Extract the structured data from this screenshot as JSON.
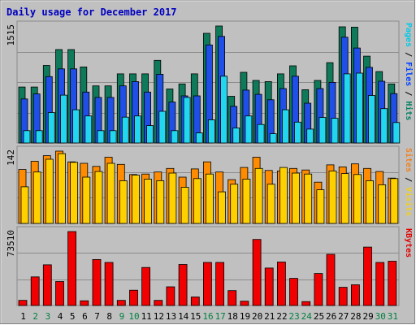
{
  "chart_data": {
    "type": "bar",
    "title": "Daily usage for December 2017",
    "days": [
      "1",
      "2",
      "3",
      "4",
      "5",
      "6",
      "7",
      "8",
      "9",
      "10",
      "11",
      "12",
      "13",
      "14",
      "15",
      "16",
      "17",
      "18",
      "19",
      "20",
      "21",
      "22",
      "23",
      "24",
      "25",
      "26",
      "27",
      "28",
      "29",
      "30",
      "31"
    ],
    "weekend_days": [
      "2",
      "3",
      "9",
      "10",
      "16",
      "17",
      "23",
      "24",
      "30",
      "31"
    ],
    "day_label_color": "#000000",
    "weekend_label_color": "#008040",
    "panels": [
      {
        "id": "hits",
        "ymax_label": "1515",
        "ymax": 1515,
        "legend": [
          {
            "text": "Pages",
            "color": "#00c8e6"
          },
          {
            "text": " / ",
            "color": "#000000"
          },
          {
            "text": "Files",
            "color": "#0040ff"
          },
          {
            "text": " / ",
            "color": "#000000"
          },
          {
            "text": "Hits",
            "color": "#008060"
          }
        ],
        "series": [
          {
            "name": "Hits",
            "color": "#0e7a5a",
            "values": [
              725,
              725,
              1005,
              1210,
              1210,
              985,
              740,
              740,
              895,
              895,
              895,
              1070,
              700,
              765,
              895,
              1420,
              1515,
              605,
              915,
              810,
              795,
              895,
              1000,
              690,
              810,
              1040,
              1505,
              1500,
              1125,
              925,
              765
            ]
          },
          {
            "name": "Files",
            "color": "#1f4fe6",
            "values": [
              570,
              635,
              860,
              960,
              960,
              660,
              590,
              590,
              740,
              795,
              660,
              890,
              530,
              610,
              610,
              1270,
              1380,
              475,
              685,
              630,
              560,
              705,
              865,
              515,
              705,
              785,
              1370,
              1230,
              980,
              800,
              640
            ]
          },
          {
            "name": "Pages",
            "color": "#22d6f0",
            "values": [
              160,
              160,
              395,
              620,
              430,
              350,
              160,
              160,
              335,
              350,
              225,
              410,
              160,
              590,
              130,
              300,
              865,
              195,
              350,
              240,
              120,
              430,
              270,
              180,
              330,
              320,
              895,
              905,
              615,
              445,
              265
            ]
          }
        ]
      },
      {
        "id": "visits",
        "ymax_label": "142",
        "ymax": 142,
        "legend": [
          {
            "text": "Sites",
            "color": "#f08020"
          },
          {
            "text": " / ",
            "color": "#000000"
          },
          {
            "text": "Visits",
            "color": "#f0d020"
          }
        ],
        "series": [
          {
            "name": "Visits",
            "color": "#ff8c00",
            "values": [
              106,
              122,
              133,
              142,
              121,
              118,
              112,
              130,
              116,
              96,
              97,
              101,
              108,
              91,
              107,
              121,
              101,
              86,
              110,
              130,
              104,
              103,
              108,
              105,
              81,
              115,
              111,
              117,
              108,
              102,
              89
            ]
          },
          {
            "name": "Sites",
            "color": "#ffd000",
            "values": [
              72,
              101,
              126,
              137,
              120,
              91,
              102,
              118,
              84,
              95,
              87,
              84,
              99,
              71,
              88,
              97,
              62,
              77,
              87,
              108,
              77,
              110,
              99,
              97,
              66,
              103,
              98,
              96,
              84,
              76,
              88
            ]
          }
        ]
      },
      {
        "id": "kbytes",
        "ymax_label": "73510",
        "ymax": 73510,
        "legend": [
          {
            "text": "KBytes",
            "color": "#e00000"
          }
        ],
        "series": [
          {
            "name": "KBytes",
            "color": "#f00000",
            "values": [
              5100,
              28400,
              40500,
              23800,
              73510,
              4700,
              45700,
              42800,
              5100,
              15200,
              37800,
              5100,
              18600,
              40800,
              8500,
              42800,
              42800,
              14800,
              4300,
              65700,
              37200,
              43200,
              27000,
              3900,
              31800,
              50900,
              18100,
              20600,
              58100,
              42800,
              44000
            ]
          }
        ]
      }
    ]
  }
}
